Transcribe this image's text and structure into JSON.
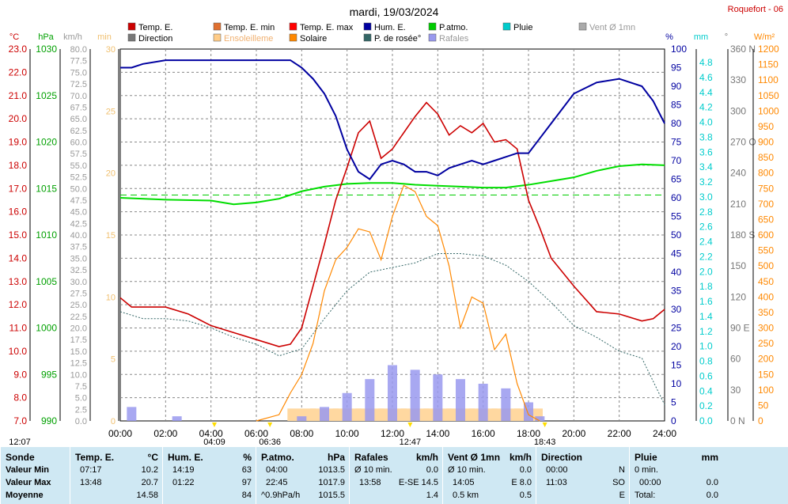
{
  "title": "mardi, 19/03/2024",
  "location": "Roquefort - 06",
  "legend": [
    {
      "label": "Temp. E.",
      "color": "#cc0000"
    },
    {
      "label": "Temp. E. min",
      "color": "#e07030"
    },
    {
      "label": "Temp. E. max",
      "color": "#ff0000"
    },
    {
      "label": "Hum. E.",
      "color": "#0000a0"
    },
    {
      "label": "P.atmo.",
      "color": "#00cc00"
    },
    {
      "label": "Pluie",
      "color": "#00cccc"
    },
    {
      "label": "Vent Ø 1mn",
      "color": "#aaaaaa"
    },
    {
      "label": "Direction",
      "color": "#777777"
    },
    {
      "label": "Ensoleilleme",
      "color": "#ffcc88"
    },
    {
      "label": "Solaire",
      "color": "#ff8800"
    },
    {
      "label": "P. de rosée°",
      "color": "#336666"
    },
    {
      "label": "Rafales",
      "color": "#9999ee"
    }
  ],
  "axis_units": {
    "temp": "°C",
    "hpa": "hPa",
    "kmh": "km/h",
    "min": "min",
    "pct": "%",
    "mm": "mm",
    "deg": "°",
    "wm2": "W/m²"
  },
  "axes": {
    "temp_ticks": [
      "23.0",
      "22.0",
      "21.0",
      "20.0",
      "19.0",
      "18.0",
      "17.0",
      "16.0",
      "15.0",
      "14.0",
      "13.0",
      "12.0",
      "11.0",
      "10.0",
      "9.0",
      "8.0",
      "7.0"
    ],
    "hpa_ticks": [
      "1030",
      "1025",
      "1020",
      "1015",
      "1010",
      "1005",
      "1000",
      "995",
      "990"
    ],
    "kmh_ticks": [
      "80.0",
      "77.5",
      "75.0",
      "72.5",
      "70.0",
      "67.5",
      "65.0",
      "62.5",
      "60.0",
      "57.5",
      "55.0",
      "52.5",
      "50.0",
      "47.5",
      "45.0",
      "42.5",
      "40.0",
      "37.5",
      "35.0",
      "32.5",
      "30.0",
      "27.5",
      "25.0",
      "22.5",
      "20.0",
      "17.5",
      "15.0",
      "12.5",
      "10.0",
      "7.5",
      "5.0",
      "2.5",
      "0.0"
    ],
    "min_ticks": [
      "30",
      "25",
      "20",
      "15",
      "10",
      "5",
      "0"
    ],
    "pct_ticks": [
      "100",
      "95",
      "90",
      "85",
      "80",
      "75",
      "70",
      "65",
      "60",
      "55",
      "50",
      "45",
      "40",
      "35",
      "30",
      "25",
      "20",
      "15",
      "10",
      "5",
      "0"
    ],
    "mm_ticks": [
      "4.8",
      "4.6",
      "4.4",
      "4.2",
      "4.0",
      "3.8",
      "3.6",
      "3.4",
      "3.2",
      "3.0",
      "2.8",
      "2.6",
      "2.4",
      "2.2",
      "2.0",
      "1.8",
      "1.6",
      "1.4",
      "1.2",
      "1.0",
      "0.8",
      "0.6",
      "0.4",
      "0.2",
      "0.0"
    ],
    "deg_ticks": [
      "360 N",
      "330",
      "300",
      "270 O",
      "240",
      "210",
      "180 S",
      "150",
      "120",
      "90 E",
      "60",
      "30",
      "0 N"
    ],
    "wm2_ticks": [
      "1200",
      "1150",
      "1100",
      "1050",
      "1000",
      "950",
      "900",
      "850",
      "800",
      "750",
      "700",
      "650",
      "600",
      "550",
      "500",
      "450",
      "400",
      "350",
      "300",
      "250",
      "200",
      "150",
      "100",
      "50",
      "0"
    ],
    "x_ticks": [
      "00:00",
      "02:00",
      "04:00",
      "06:00",
      "08:00",
      "10:00",
      "12:00",
      "14:00",
      "16:00",
      "18:00",
      "20:00",
      "22:00",
      "24:00"
    ]
  },
  "bottom_markers": [
    "12:07",
    "04:09",
    "06:36",
    "12:47",
    "18:43"
  ],
  "chart_data": {
    "type": "line",
    "x_unit": "hour",
    "xlim": [
      0,
      24
    ],
    "series": [
      {
        "name": "Temp. E.",
        "axis": "°C",
        "ylim": [
          7,
          23
        ],
        "x": [
          0,
          0.5,
          1,
          2,
          3,
          4,
          5,
          6,
          7,
          7.5,
          8,
          8.5,
          9,
          9.5,
          10,
          10.5,
          11,
          11.5,
          12,
          12.5,
          13,
          13.5,
          14,
          14.5,
          15,
          15.5,
          16,
          16.5,
          17,
          17.5,
          18,
          18.5,
          19,
          20,
          21,
          22,
          23,
          23.5,
          24
        ],
        "y": [
          12.3,
          11.9,
          11.9,
          11.9,
          11.6,
          11.1,
          10.8,
          10.5,
          10.2,
          10.3,
          11.0,
          12.8,
          14.6,
          16.5,
          17.9,
          19.4,
          19.9,
          18.3,
          18.7,
          19.4,
          20.1,
          20.7,
          20.2,
          19.3,
          19.7,
          19.4,
          19.8,
          19.0,
          19.1,
          18.7,
          16.5,
          15.3,
          14.0,
          12.8,
          11.7,
          11.6,
          11.3,
          11.4,
          11.8
        ]
      },
      {
        "name": "Hum. E.",
        "axis": "%",
        "ylim": [
          0,
          100
        ],
        "x": [
          0,
          0.5,
          1,
          2,
          3,
          4,
          5,
          6,
          7,
          7.5,
          8,
          8.5,
          9,
          9.5,
          10,
          10.5,
          11,
          11.5,
          12,
          12.5,
          13,
          13.5,
          14,
          14.5,
          15,
          15.5,
          16,
          16.5,
          17,
          17.5,
          18,
          18.5,
          19,
          20,
          21,
          22,
          23,
          23.5,
          24
        ],
        "y": [
          95,
          95,
          96,
          97,
          97,
          97,
          97,
          97,
          97,
          97,
          95,
          92,
          88,
          82,
          73,
          67,
          65,
          69,
          70,
          69,
          67,
          67,
          66,
          68,
          69,
          70,
          69,
          70,
          71,
          72,
          72,
          76,
          80,
          88,
          91,
          92,
          90,
          86,
          80
        ]
      },
      {
        "name": "P.atmo.",
        "axis": "hPa",
        "ylim": [
          990,
          1030
        ],
        "x": [
          0,
          2,
          4,
          5,
          6,
          7,
          8,
          9,
          10,
          11,
          12,
          13,
          14,
          15,
          16,
          17,
          18,
          19,
          20,
          21,
          22,
          23,
          24
        ],
        "y": [
          1014.0,
          1013.8,
          1013.7,
          1013.3,
          1013.5,
          1013.9,
          1014.7,
          1015.2,
          1015.5,
          1015.6,
          1015.6,
          1015.4,
          1015.3,
          1015.2,
          1015.1,
          1015.1,
          1015.4,
          1015.8,
          1016.2,
          1016.9,
          1017.4,
          1017.6,
          1017.5
        ]
      },
      {
        "name": "P. de rosée°",
        "axis": "°C",
        "ylim": [
          7,
          23
        ],
        "x": [
          0,
          1,
          2,
          3,
          4,
          5,
          6,
          7,
          8,
          9,
          10,
          11,
          12,
          13,
          14,
          15,
          16,
          17,
          18,
          19,
          20,
          21,
          22,
          23,
          24
        ],
        "y": [
          11.7,
          11.4,
          11.4,
          11.3,
          11.0,
          10.6,
          10.3,
          9.8,
          10.1,
          11.4,
          12.6,
          13.4,
          13.6,
          13.8,
          14.2,
          14.2,
          14.1,
          13.7,
          13.0,
          12.1,
          11.1,
          10.6,
          10.0,
          9.7,
          7.7
        ]
      },
      {
        "name": "Solaire",
        "axis": "W/m²",
        "ylim": [
          0,
          1200
        ],
        "x": [
          6,
          7,
          7.5,
          8,
          8.5,
          9,
          9.5,
          10,
          10.5,
          11,
          11.5,
          12,
          12.5,
          13,
          13.5,
          14,
          14.5,
          15,
          15.5,
          16,
          16.5,
          17,
          17.5,
          18,
          18.5
        ],
        "y": [
          0,
          20,
          90,
          150,
          250,
          420,
          520,
          560,
          620,
          610,
          520,
          660,
          760,
          740,
          660,
          630,
          500,
          300,
          400,
          380,
          230,
          280,
          120,
          20,
          0
        ]
      },
      {
        "name": "Rafales",
        "axis": "km/h",
        "ylim": [
          0,
          80
        ],
        "x": [
          0,
          0.5,
          1,
          2.5,
          3,
          4,
          5,
          6,
          7,
          8,
          9,
          10,
          11,
          12,
          13,
          14,
          15,
          16,
          17,
          18,
          18.5,
          19,
          20,
          24
        ],
        "y": [
          0,
          3,
          0,
          1,
          0,
          0,
          0,
          0,
          0,
          1,
          3,
          6,
          9,
          12,
          11,
          10,
          9,
          8,
          7,
          4,
          1,
          0,
          0,
          0
        ]
      },
      {
        "name": "Ensoleilleme",
        "axis": "min",
        "ylim": [
          0,
          30
        ],
        "x": [
          8,
          9,
          10,
          11,
          12,
          13,
          14,
          15,
          16,
          17,
          18
        ],
        "y": [
          1,
          1,
          1,
          1,
          1,
          1,
          1,
          1,
          1,
          1,
          1
        ]
      }
    ],
    "reference_lines": [
      {
        "label": "P.atmo. (dashed)",
        "value": 1014.3,
        "axis": "hPa"
      }
    ]
  },
  "summary": {
    "sonde": {
      "title": "Sonde",
      "rows": [
        "Valeur Min",
        "Valeur Max",
        "Moyenne"
      ]
    },
    "temp": {
      "title": "Temp. E.",
      "unit": "°C",
      "rows": [
        [
          "07:17",
          "10.2"
        ],
        [
          "13:48",
          "20.7"
        ],
        [
          "",
          "14.58"
        ]
      ]
    },
    "hum": {
      "title": "Hum. E.",
      "unit": "%",
      "rows": [
        [
          "14:19",
          "63"
        ],
        [
          "01:22",
          "97"
        ],
        [
          "",
          "84"
        ]
      ]
    },
    "patmo": {
      "title": "P.atmo.",
      "unit": "hPa",
      "rows": [
        [
          "04:00",
          "1013.5"
        ],
        [
          "22:45",
          "1017.9"
        ],
        [
          "^0.9hPa/h",
          "1015.5"
        ]
      ]
    },
    "rafales": {
      "title": "Rafales",
      "unit": "km/h",
      "rows": [
        [
          "Ø 10 min.",
          "0.0"
        ],
        [
          "13:58",
          "E-SE 14.5"
        ],
        [
          "",
          "1.4"
        ]
      ]
    },
    "vent": {
      "title": "Vent Ø 1mn",
      "unit": "km/h",
      "rows": [
        [
          "Ø 10 min.",
          "0.0"
        ],
        [
          "14:05",
          "E 8.0"
        ],
        [
          "0.5 km",
          "0.5"
        ]
      ]
    },
    "dir": {
      "title": "Direction",
      "unit": "",
      "rows": [
        [
          "00:00",
          "N"
        ],
        [
          "11:03",
          "SO"
        ],
        [
          "",
          "E"
        ]
      ]
    },
    "pluie": {
      "title": "Pluie",
      "unit": "mm",
      "rows": [
        [
          "0 min.",
          ""
        ],
        [
          "00:00",
          "0.0"
        ],
        [
          "Total:",
          "0.0"
        ]
      ]
    }
  }
}
